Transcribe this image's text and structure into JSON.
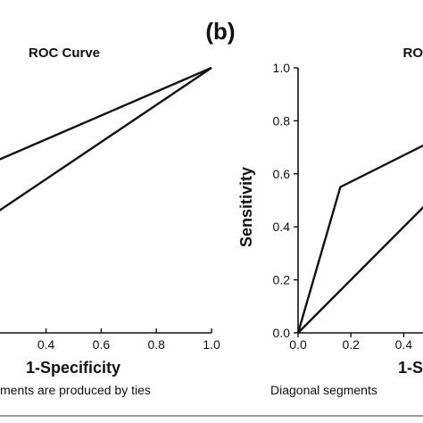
{
  "figure": {
    "panel_label": "(b)"
  },
  "chart_data": [
    {
      "type": "line",
      "title": "ROC Curve",
      "xlabel": "1-Specificity",
      "ylabel": "",
      "xlim": [
        0,
        1
      ],
      "ylim": [
        0,
        1
      ],
      "x_ticks": [
        "0.4",
        "0.6",
        "0.8",
        "1.0"
      ],
      "y_ticks": [],
      "footnote": "ments are produced by ties",
      "series": [
        {
          "role": "curve",
          "x": [
            0.0,
            1.0
          ],
          "y": [
            0.55,
            1.0
          ]
        },
        {
          "role": "reference",
          "x": [
            0.0,
            1.0
          ],
          "y": [
            0.3,
            1.0
          ]
        }
      ]
    },
    {
      "type": "line",
      "title": "RO",
      "xlabel": "1-S",
      "ylabel": "Sensitivity",
      "xlim": [
        0,
        1
      ],
      "ylim": [
        0,
        1
      ],
      "x_ticks": [
        "0.0",
        "0.2",
        "0.4"
      ],
      "y_ticks": [
        "0.0",
        "0.2",
        "0.4",
        "0.6",
        "0.8",
        "1.0"
      ],
      "footnote": "Diagonal segments",
      "series": [
        {
          "role": "curve",
          "x": [
            0.0,
            0.16,
            0.5
          ],
          "y": [
            0.0,
            0.55,
            0.72
          ]
        },
        {
          "role": "reference",
          "x": [
            0.0,
            0.5
          ],
          "y": [
            0.0,
            0.5
          ]
        }
      ]
    }
  ]
}
